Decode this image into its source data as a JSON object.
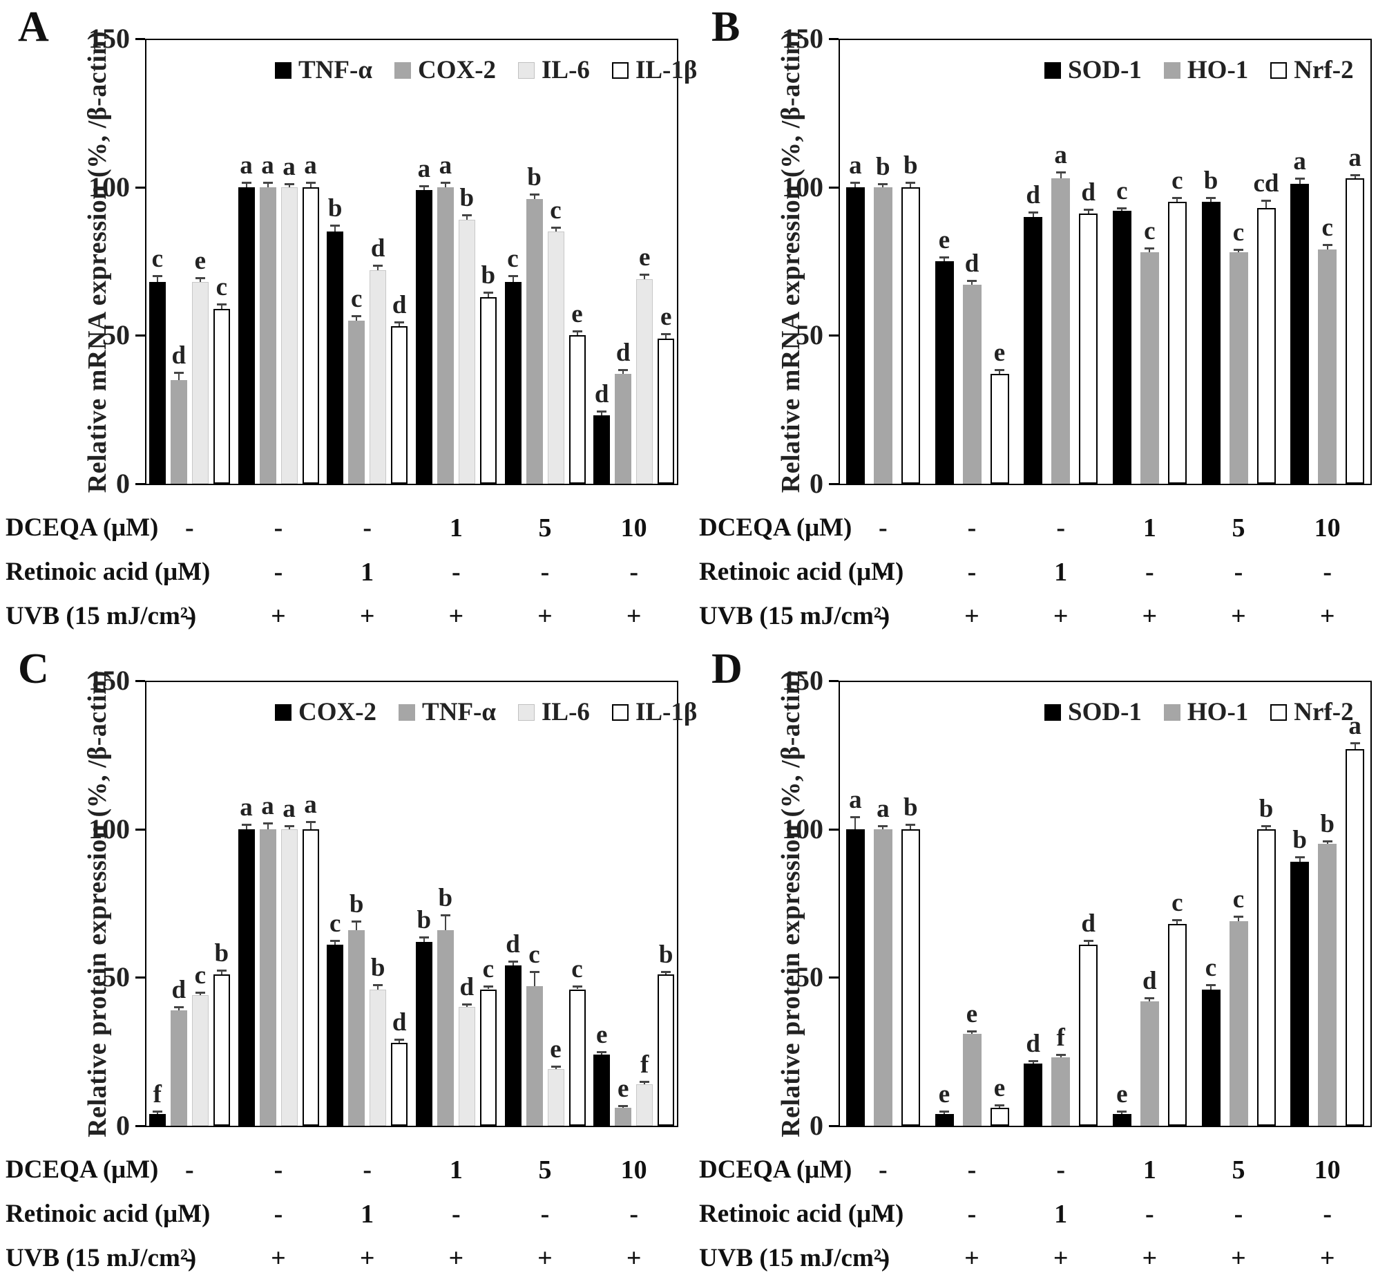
{
  "figure": {
    "panel_count": 4,
    "background": "#ffffff",
    "axis_color": "#000000",
    "bar_colors": {
      "black": "#000000",
      "gray": "#a6a6a6",
      "light_gray": "#e8e8e8",
      "white": "#ffffff"
    }
  },
  "chart_data": [
    {
      "type": "bar",
      "panel_label": "A",
      "ylabel": "Relative mRNA expression (%, /β-actin)",
      "ylim": [
        0,
        150
      ],
      "yticks": [
        0,
        50,
        100,
        150
      ],
      "grid": false,
      "legend_position": "top-inside",
      "legend_left": 398,
      "series": [
        {
          "name": "TNF-α",
          "color": "#000000",
          "values": [
            68,
            100,
            85,
            99,
            68,
            23
          ],
          "errors": [
            2,
            1.5,
            2,
            1.5,
            2,
            1.5
          ],
          "letters": [
            "c",
            "a",
            "b",
            "a",
            "c",
            "d"
          ]
        },
        {
          "name": "COX-2",
          "color": "#a6a6a6",
          "values": [
            35,
            100,
            55,
            100,
            96,
            37
          ],
          "errors": [
            2.5,
            1.5,
            1.5,
            1.5,
            1.5,
            1.5
          ],
          "letters": [
            "d",
            "a",
            "c",
            "a",
            "b",
            "d"
          ]
        },
        {
          "name": "IL-6",
          "color": "#e8e8e8",
          "values": [
            68,
            100,
            72,
            89,
            85,
            69
          ],
          "errors": [
            1.5,
            1,
            1.5,
            1.5,
            1.5,
            1.5
          ],
          "letters": [
            "e",
            "a",
            "d",
            "b",
            "c",
            "e"
          ]
        },
        {
          "name": "IL-1β",
          "color": "#ffffff",
          "values": [
            59,
            100,
            53,
            63,
            50,
            49
          ],
          "errors": [
            1.5,
            1.5,
            1.5,
            1.5,
            1.5,
            1.5
          ],
          "letters": [
            "c",
            "a",
            "d",
            "b",
            "e",
            "e"
          ]
        }
      ],
      "x_rows": [
        {
          "label": "DCEQA (μM)",
          "values": [
            "-",
            "-",
            "-",
            "1",
            "5",
            "10"
          ]
        },
        {
          "label": "Retinoic acid (μM)",
          "values": [
            "-",
            "-",
            "1",
            "-",
            "-",
            "-"
          ]
        },
        {
          "label": "UVB (15 mJ/cm²)",
          "values": [
            "-",
            "+",
            "+",
            "+",
            "+",
            "+"
          ]
        }
      ]
    },
    {
      "type": "bar",
      "panel_label": "B",
      "ylabel": "Relative mRNA expression (%, /β-actin)",
      "ylim": [
        0,
        150
      ],
      "yticks": [
        0,
        50,
        100,
        150
      ],
      "grid": false,
      "legend_position": "top-inside",
      "legend_left": 508,
      "series": [
        {
          "name": "SOD-1",
          "color": "#000000",
          "values": [
            100,
            75,
            90,
            92,
            95,
            101
          ],
          "errors": [
            1.5,
            1.5,
            1.5,
            1,
            1.5,
            2
          ],
          "letters": [
            "a",
            "e",
            "d",
            "c",
            "b",
            "a"
          ]
        },
        {
          "name": "HO-1",
          "color": "#a6a6a6",
          "values": [
            100,
            67,
            103,
            78,
            78,
            79
          ],
          "errors": [
            1,
            1.5,
            2,
            1.5,
            1,
            1.5
          ],
          "letters": [
            "b",
            "d",
            "a",
            "c",
            "c",
            "c"
          ]
        },
        {
          "name": "Nrf-2",
          "color": "#ffffff",
          "values": [
            100,
            37,
            91,
            95,
            93,
            103
          ],
          "errors": [
            1.5,
            1.5,
            1.5,
            1.5,
            2.5,
            1
          ],
          "letters": [
            "b",
            "e",
            "d",
            "c",
            "cd",
            "a"
          ]
        }
      ],
      "x_rows": [
        {
          "label": "DCEQA (μM)",
          "values": [
            "-",
            "-",
            "-",
            "1",
            "5",
            "10"
          ]
        },
        {
          "label": "Retinoic acid (μM)",
          "values": [
            "-",
            "-",
            "1",
            "-",
            "-",
            "-"
          ]
        },
        {
          "label": "UVB (15 mJ/cm²)",
          "values": [
            "-",
            "+",
            "+",
            "+",
            "+",
            "+"
          ]
        }
      ]
    },
    {
      "type": "bar",
      "panel_label": "C",
      "ylabel": "Relative protein expression (%, /β-actin)",
      "ylim": [
        0,
        150
      ],
      "yticks": [
        0,
        50,
        100,
        150
      ],
      "grid": false,
      "legend_position": "top-inside",
      "legend_left": 398,
      "series": [
        {
          "name": "COX-2",
          "color": "#000000",
          "values": [
            4,
            100,
            61,
            62,
            54,
            24
          ],
          "errors": [
            1,
            1.5,
            1.5,
            1.5,
            1.5,
            1
          ],
          "letters": [
            "f",
            "a",
            "c",
            "b",
            "d",
            "e"
          ]
        },
        {
          "name": "TNF-α",
          "color": "#a6a6a6",
          "values": [
            39,
            100,
            66,
            66,
            47,
            6
          ],
          "errors": [
            1,
            2,
            3,
            5,
            5,
            0.8
          ],
          "letters": [
            "d",
            "a",
            "b",
            "b",
            "c",
            "e"
          ]
        },
        {
          "name": "IL-6",
          "color": "#e8e8e8",
          "values": [
            44,
            100,
            46,
            40,
            19,
            14
          ],
          "errors": [
            1,
            1,
            1.5,
            1,
            1,
            1
          ],
          "letters": [
            "c",
            "a",
            "b",
            "d",
            "e",
            "f"
          ]
        },
        {
          "name": "IL-1β",
          "color": "#ffffff",
          "values": [
            51,
            100,
            28,
            46,
            46,
            51
          ],
          "errors": [
            1.5,
            2.5,
            1,
            1,
            1,
            1
          ],
          "letters": [
            "b",
            "a",
            "d",
            "c",
            "c",
            "b"
          ]
        }
      ],
      "x_rows": [
        {
          "label": "DCEQA (μM)",
          "values": [
            "-",
            "-",
            "-",
            "1",
            "5",
            "10"
          ]
        },
        {
          "label": "Retinoic acid (μM)",
          "values": [
            "-",
            "-",
            "1",
            "-",
            "-",
            "-"
          ]
        },
        {
          "label": "UVB (15 mJ/cm²)",
          "values": [
            "-",
            "+",
            "+",
            "+",
            "+",
            "+"
          ]
        }
      ]
    },
    {
      "type": "bar",
      "panel_label": "D",
      "ylabel": "Relative protein expression (%, /β-actin)",
      "ylim": [
        0,
        150
      ],
      "yticks": [
        0,
        50,
        100,
        150
      ],
      "grid": false,
      "legend_position": "top-inside",
      "legend_left": 508,
      "series": [
        {
          "name": "SOD-1",
          "color": "#000000",
          "values": [
            100,
            4,
            21,
            4,
            46,
            89
          ],
          "errors": [
            4,
            0.8,
            1,
            0.8,
            1.5,
            1.5
          ],
          "letters": [
            "a",
            "e",
            "d",
            "e",
            "c",
            "b"
          ]
        },
        {
          "name": "HO-1",
          "color": "#a6a6a6",
          "values": [
            100,
            31,
            23,
            42,
            69,
            95
          ],
          "errors": [
            1,
            1,
            1,
            1,
            1.5,
            1
          ],
          "letters": [
            "a",
            "e",
            "f",
            "d",
            "c",
            "b"
          ]
        },
        {
          "name": "Nrf-2",
          "color": "#ffffff",
          "values": [
            100,
            6,
            61,
            68,
            100,
            127
          ],
          "errors": [
            1.5,
            1,
            1.5,
            1.5,
            1,
            2
          ],
          "letters": [
            "b",
            "e",
            "d",
            "c",
            "b",
            "a"
          ]
        }
      ],
      "x_rows": [
        {
          "label": "DCEQA (μM)",
          "values": [
            "-",
            "-",
            "-",
            "1",
            "5",
            "10"
          ]
        },
        {
          "label": "Retinoic acid (μM)",
          "values": [
            "-",
            "-",
            "1",
            "-",
            "-",
            "-"
          ]
        },
        {
          "label": "UVB (15 mJ/cm²)",
          "values": [
            "-",
            "+",
            "+",
            "+",
            "+",
            "+"
          ]
        }
      ]
    }
  ]
}
